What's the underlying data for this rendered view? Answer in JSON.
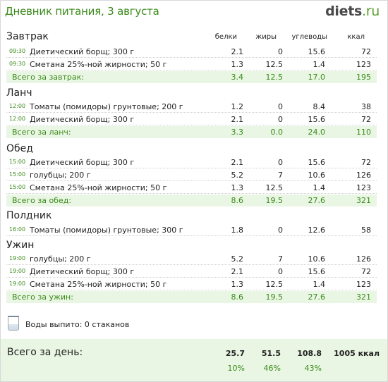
{
  "header": {
    "title": "Дневник питания, 3 августа",
    "logo_main": "diets",
    "logo_tld": ".ru"
  },
  "columns": {
    "protein": "белки",
    "fat": "жиры",
    "carbs": "углеводы",
    "kcal": "ккал"
  },
  "meals": [
    {
      "title": "Завтрак",
      "items": [
        {
          "time": "09:30",
          "name": "Диетический борщ; 300 г",
          "protein": "2.1",
          "fat": "0",
          "carbs": "15.6",
          "kcal": "72"
        },
        {
          "time": "09:30",
          "name": "Сметана 25%-ной жирности; 50 г",
          "protein": "1.3",
          "fat": "12.5",
          "carbs": "1.4",
          "kcal": "123"
        }
      ],
      "total": {
        "label": "Всего за завтрак:",
        "protein": "3.4",
        "fat": "12.5",
        "carbs": "17.0",
        "kcal": "195"
      }
    },
    {
      "title": "Ланч",
      "items": [
        {
          "time": "12:00",
          "name": "Томаты (помидоры) грунтовые; 200 г",
          "protein": "1.2",
          "fat": "0",
          "carbs": "8.4",
          "kcal": "38"
        },
        {
          "time": "12:00",
          "name": "Диетический борщ; 300 г",
          "protein": "2.1",
          "fat": "0",
          "carbs": "15.6",
          "kcal": "72"
        }
      ],
      "total": {
        "label": "Всего за ланч:",
        "protein": "3.3",
        "fat": "0.0",
        "carbs": "24.0",
        "kcal": "110"
      }
    },
    {
      "title": "Обед",
      "items": [
        {
          "time": "15:00",
          "name": "Диетический борщ; 300 г",
          "protein": "2.1",
          "fat": "0",
          "carbs": "15.6",
          "kcal": "72"
        },
        {
          "time": "15:00",
          "name": "голубцы; 200 г",
          "protein": "5.2",
          "fat": "7",
          "carbs": "10.6",
          "kcal": "126"
        },
        {
          "time": "15:00",
          "name": "Сметана 25%-ной жирности; 50 г",
          "protein": "1.3",
          "fat": "12.5",
          "carbs": "1.4",
          "kcal": "123"
        }
      ],
      "total": {
        "label": "Всего за обед:",
        "protein": "8.6",
        "fat": "19.5",
        "carbs": "27.6",
        "kcal": "321"
      }
    },
    {
      "title": "Полдник",
      "items": [
        {
          "time": "16:00",
          "name": "Томаты (помидоры) грунтовые; 300 г",
          "protein": "1.8",
          "fat": "0",
          "carbs": "12.6",
          "kcal": "58"
        }
      ],
      "total": null
    },
    {
      "title": "Ужин",
      "items": [
        {
          "time": "19:00",
          "name": "голубцы; 200 г",
          "protein": "5.2",
          "fat": "7",
          "carbs": "10.6",
          "kcal": "126"
        },
        {
          "time": "19:00",
          "name": "Диетический борщ; 300 г",
          "protein": "2.1",
          "fat": "0",
          "carbs": "15.6",
          "kcal": "72"
        },
        {
          "time": "19:00",
          "name": "Сметана 25%-ной жирности; 50 г",
          "protein": "1.3",
          "fat": "12.5",
          "carbs": "1.4",
          "kcal": "123"
        }
      ],
      "total": {
        "label": "Всего за ужин:",
        "protein": "8.6",
        "fat": "19.5",
        "carbs": "27.6",
        "kcal": "321"
      }
    }
  ],
  "water": {
    "text": "Воды выпито: 0 стаканов",
    "icon": "glass-icon"
  },
  "day_total": {
    "label": "Всего за день:",
    "protein": "25.7",
    "fat": "51.5",
    "carbs": "108.8",
    "kcal": "1005 ккал",
    "protein_pct": "10%",
    "fat_pct": "46%",
    "carbs_pct": "43%"
  },
  "colors": {
    "accent_green": "#3a8a1a",
    "total_bg": "#eaf6e4"
  }
}
